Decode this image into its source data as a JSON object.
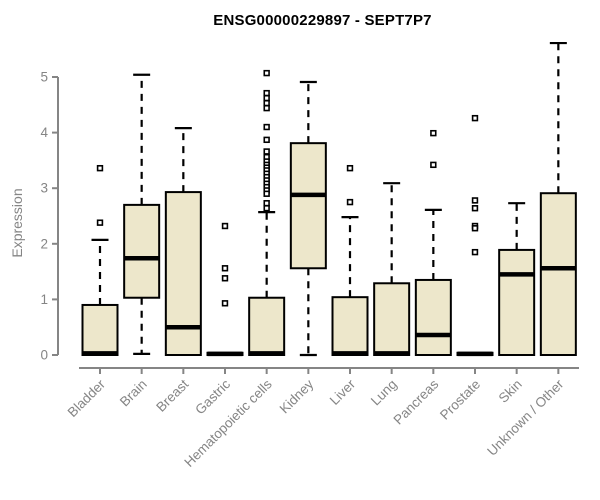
{
  "chart_data": {
    "type": "boxplot",
    "title": "ENSG00000229897 - SEPT7P7",
    "ylabel": "Expression",
    "xlabel": "",
    "ylim": [
      0,
      5.65
    ],
    "yticks": [
      0,
      1,
      2,
      3,
      4,
      5
    ],
    "grid": false,
    "legend_position": "none",
    "colors": {
      "box_fill": "#EDE7CB",
      "box_border": "#000000",
      "median": "#000000",
      "whisker": "#000000",
      "outlier_stroke": "#000000",
      "outlier_fill": "#ffffff",
      "axis": "#858585",
      "tick_label": "#858585",
      "title": "#000000",
      "background": "#ffffff"
    },
    "categories": [
      "Bladder",
      "Brain",
      "Breast",
      "Gastric",
      "Hematopoietic cells",
      "Kidney",
      "Liver",
      "Lung",
      "Pancreas",
      "Prostate",
      "Skin",
      "Unknown / Other"
    ],
    "boxes": [
      {
        "label": "Bladder",
        "whisker_low": 0,
        "q1": 0,
        "median": 0.03,
        "q3": 0.9,
        "whisker_high": 2.07,
        "outliers": [
          2.38,
          3.36
        ]
      },
      {
        "label": "Brain",
        "whisker_low": 0.02,
        "q1": 1.03,
        "median": 1.74,
        "q3": 2.7,
        "whisker_high": 5.04,
        "outliers": []
      },
      {
        "label": "Breast",
        "whisker_low": 0,
        "q1": 0,
        "median": 0.5,
        "q3": 2.93,
        "whisker_high": 4.08,
        "outliers": []
      },
      {
        "label": "Gastric",
        "whisker_low": 0,
        "q1": 0,
        "median": 0.02,
        "q3": 0.04,
        "whisker_high": 0.04,
        "outliers": [
          2.32,
          1.56,
          1.38,
          0.93
        ]
      },
      {
        "label": "Hematopoietic cells",
        "whisker_low": 0,
        "q1": 0,
        "median": 0.03,
        "q3": 1.03,
        "whisker_high": 2.57,
        "outliers": [
          5.07,
          4.71,
          4.62,
          4.53,
          4.44,
          4.1,
          3.87,
          3.66,
          3.56,
          3.48,
          3.42,
          3.37,
          3.32,
          3.26,
          3.2,
          3.14,
          3.08,
          3.02,
          2.96,
          2.9,
          2.73,
          2.64
        ]
      },
      {
        "label": "Kidney",
        "whisker_low": 0,
        "q1": 1.56,
        "median": 2.88,
        "q3": 3.81,
        "whisker_high": 4.91,
        "outliers": []
      },
      {
        "label": "Liver",
        "whisker_low": 0,
        "q1": 0,
        "median": 0.03,
        "q3": 1.04,
        "whisker_high": 2.48,
        "outliers": [
          3.36,
          2.75
        ]
      },
      {
        "label": "Lung",
        "whisker_low": 0,
        "q1": 0,
        "median": 0.03,
        "q3": 1.29,
        "whisker_high": 3.09,
        "outliers": []
      },
      {
        "label": "Pancreas",
        "whisker_low": 0,
        "q1": 0,
        "median": 0.36,
        "q3": 1.35,
        "whisker_high": 2.61,
        "outliers": [
          3.99,
          3.42
        ]
      },
      {
        "label": "Prostate",
        "whisker_low": 0,
        "q1": 0,
        "median": 0.02,
        "q3": 0.04,
        "whisker_high": 0.04,
        "outliers": [
          4.26,
          2.78,
          2.64,
          2.32,
          2.28,
          1.85
        ]
      },
      {
        "label": "Skin",
        "whisker_low": 0,
        "q1": 0,
        "median": 1.45,
        "q3": 1.89,
        "whisker_high": 2.73,
        "outliers": []
      },
      {
        "label": "Unknown / Other",
        "whisker_low": 0,
        "q1": 0,
        "median": 1.56,
        "q3": 2.91,
        "whisker_high": 5.61,
        "outliers": []
      }
    ]
  }
}
